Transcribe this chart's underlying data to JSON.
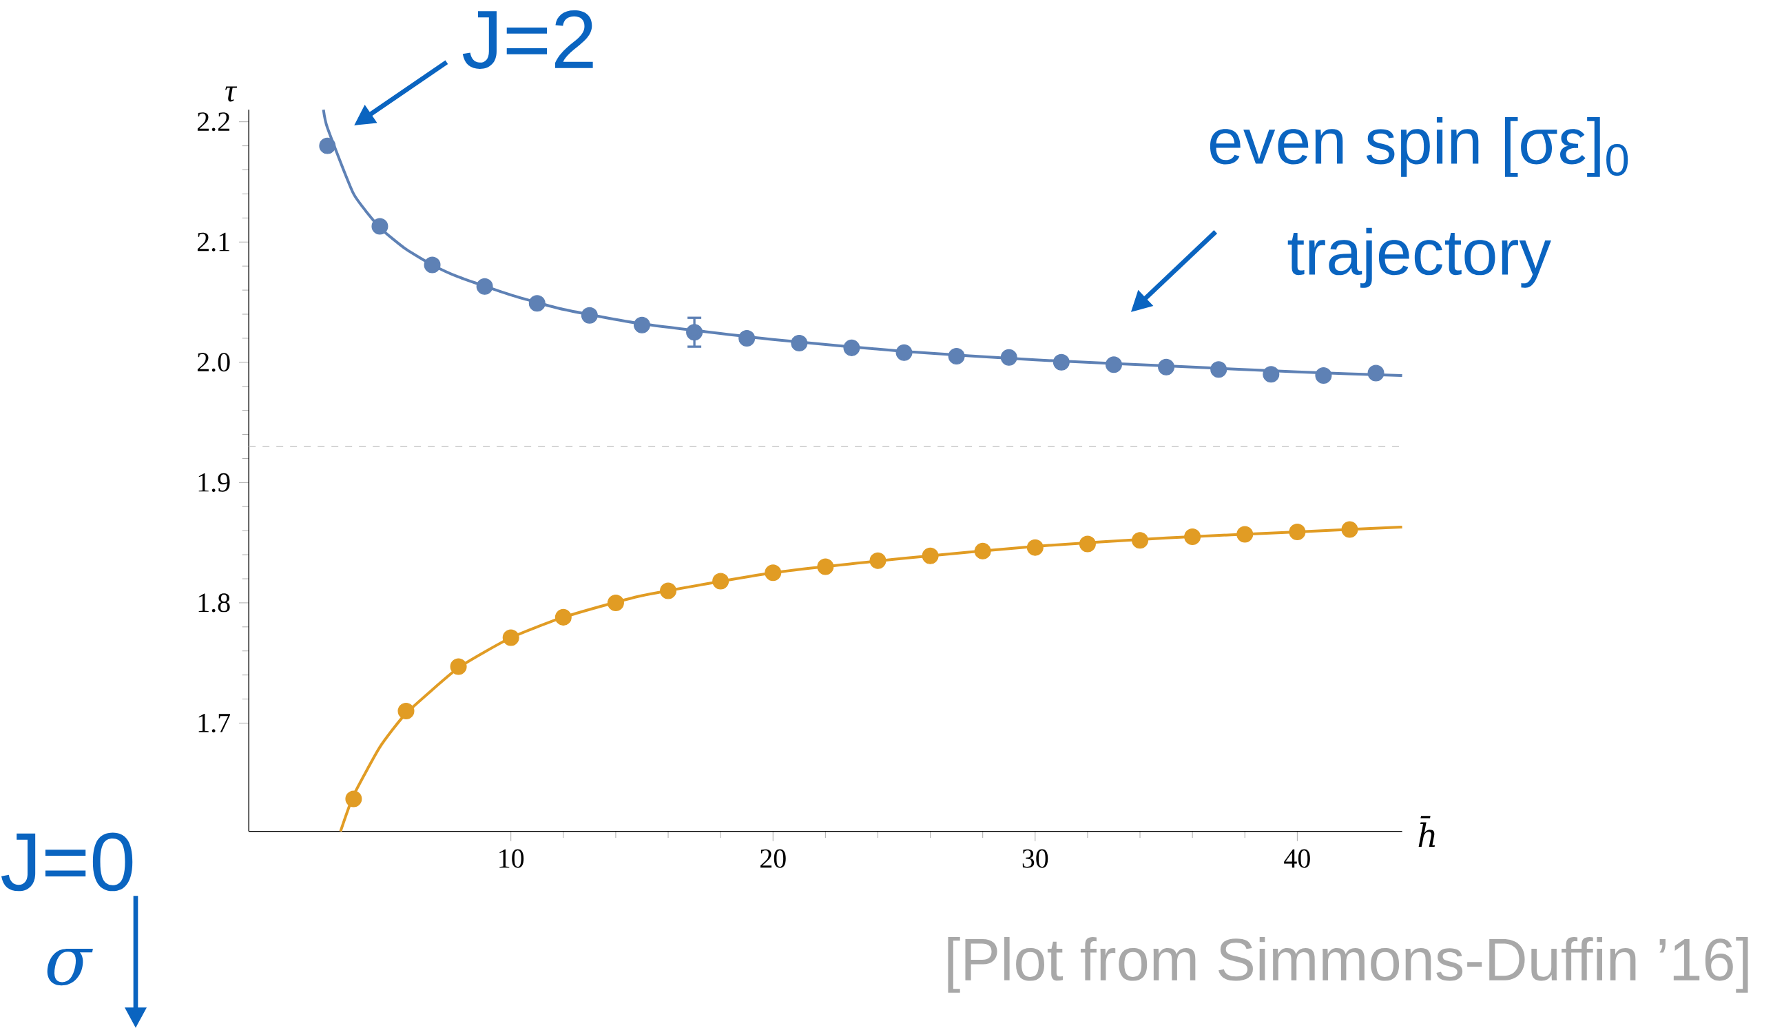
{
  "chart_data": {
    "type": "line",
    "xlabel": "h̄",
    "ylabel": "τ",
    "xlim": [
      0,
      44
    ],
    "ylim": [
      1.61,
      2.21
    ],
    "xticks": [
      10,
      20,
      30,
      40
    ],
    "yticks": [
      1.7,
      1.8,
      1.9,
      {
        "value": 2.0,
        "label": "2.0"
      },
      2.1,
      2.2
    ],
    "series": [
      {
        "marker": "none",
        "color": "#5e81b5",
        "x": [
          2.85,
          3,
          4,
          5,
          6,
          7,
          8,
          10,
          12,
          15,
          20,
          25,
          30,
          35,
          40,
          44
        ],
        "values": [
          2.21,
          2.195,
          2.14,
          2.112,
          2.094,
          2.081,
          2.071,
          2.056,
          2.044,
          2.032,
          2.019,
          2.009,
          2.002,
          1.997,
          1.992,
          1.989
        ]
      },
      {
        "marker": "none",
        "color": "#e19c24",
        "x": [
          3.5,
          4,
          5,
          6,
          8,
          10,
          12,
          15,
          20,
          25,
          30,
          35,
          40,
          44
        ],
        "values": [
          1.61,
          1.64,
          1.68,
          1.708,
          1.746,
          1.771,
          1.788,
          1.806,
          1.825,
          1.837,
          1.847,
          1.854,
          1.859,
          1.863
        ]
      },
      {
        "type": "scatter",
        "marker": "circle",
        "color": "#5e81b5",
        "x": [
          3,
          5,
          7,
          9,
          11,
          13,
          15,
          17,
          19,
          21,
          23,
          25,
          27,
          29,
          31,
          33,
          35,
          37,
          39,
          41,
          43
        ],
        "values": [
          2.18,
          2.113,
          2.081,
          2.063,
          2.049,
          2.039,
          2.031,
          2.025,
          2.02,
          2.016,
          2.012,
          2.008,
          2.005,
          2.004,
          2.0,
          1.998,
          1.996,
          1.994,
          1.99,
          1.989,
          1.991
        ],
        "errors": [
          null,
          null,
          null,
          null,
          null,
          null,
          null,
          0.012,
          null,
          null,
          null,
          null,
          null,
          null,
          null,
          null,
          null,
          null,
          null,
          null,
          null
        ]
      },
      {
        "type": "scatter",
        "marker": "circle",
        "color": "#e19c24",
        "x": [
          4,
          6,
          8,
          10,
          12,
          14,
          16,
          18,
          20,
          22,
          24,
          26,
          28,
          30,
          32,
          34,
          36,
          38,
          40,
          42
        ],
        "values": [
          1.637,
          1.71,
          1.747,
          1.771,
          1.788,
          1.8,
          1.81,
          1.818,
          1.825,
          1.83,
          1.835,
          1.839,
          1.843,
          1.846,
          1.849,
          1.852,
          1.855,
          1.857,
          1.859,
          1.861
        ]
      }
    ],
    "ref_lines": [
      {
        "axis": "y",
        "value": 1.93,
        "color": "#c8c8c8",
        "line_style": "dashed"
      }
    ],
    "annotations": [
      "J=2",
      "even spin [σε]$_{0}$",
      "trajectory",
      "J=0",
      "σ",
      "[Plot from Simmons-Duffin ’16]"
    ]
  }
}
